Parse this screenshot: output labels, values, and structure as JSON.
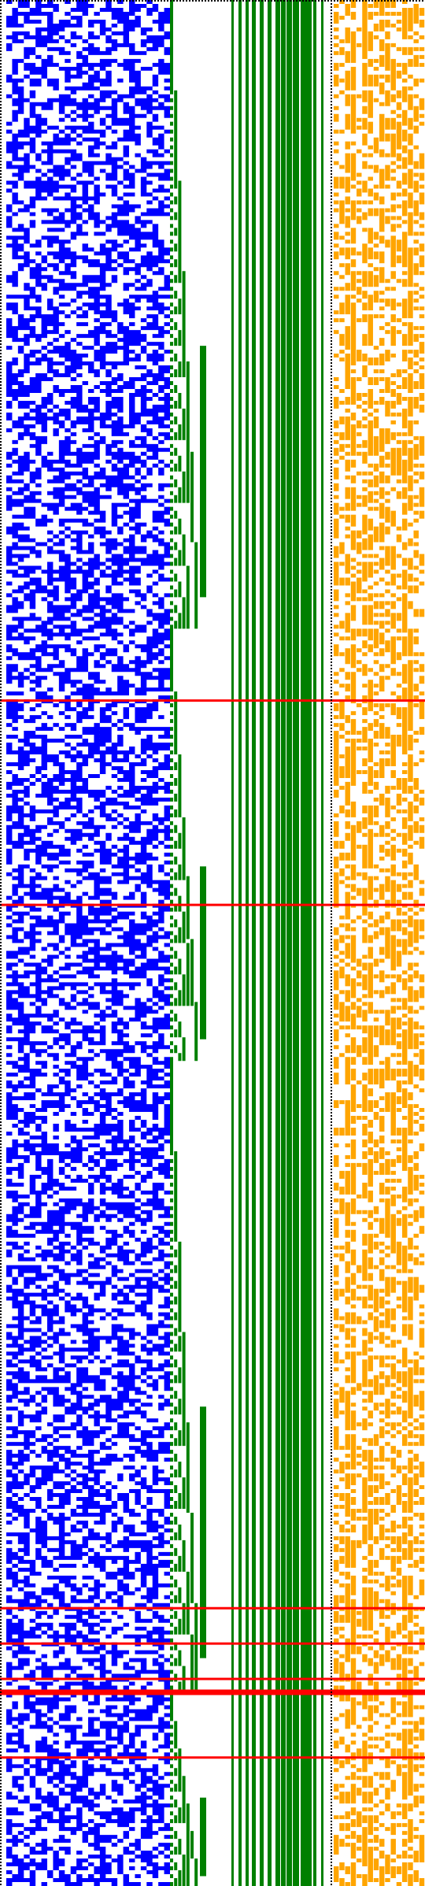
{
  "colors": {
    "background": "#ffffff",
    "bits": "#0000ff",
    "staircase": "#008000",
    "columns": "#008000",
    "sparse": "#ffa500",
    "markers": "#ff0000",
    "dotted_border": "#000000"
  },
  "grid": {
    "cell_rows": 480,
    "bit_columns": 28,
    "green_column_count": 14,
    "orange_columns": 16
  },
  "marker_rows": [
    178,
    230,
    409,
    418,
    427,
    430,
    447
  ]
}
